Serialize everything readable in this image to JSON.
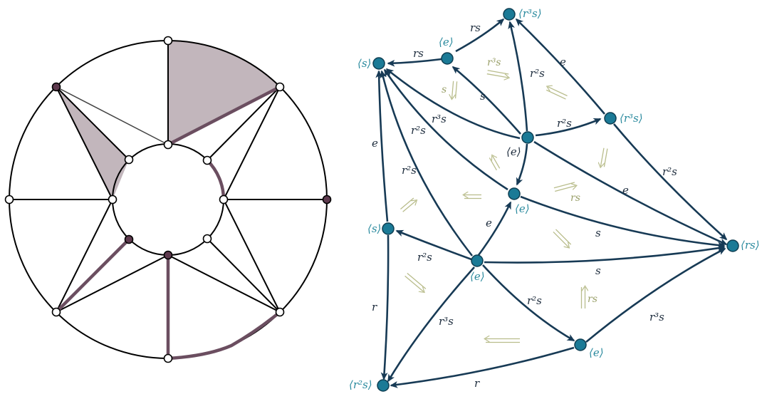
{
  "left_figure": {
    "title": "",
    "colors": {
      "shade": "#c2b6bc",
      "highlight": "#6b4e60",
      "filled_vertex": "#5e3a4e",
      "line": "#000000"
    }
  },
  "right_figure": {
    "colors": {
      "node": "#1b7a96",
      "edge": "#173a55",
      "node_label": "#2a8a9e",
      "double_arrow": "#b9bd8c",
      "double_arrow_label": "#9aa06a"
    },
    "nodes": [
      {
        "id": "n_s_top",
        "label": "⟨s⟩"
      },
      {
        "id": "n_e_top",
        "label": "⟨e⟩"
      },
      {
        "id": "n_r3s_top",
        "label": "⟨r³s⟩"
      },
      {
        "id": "n_r3s_right",
        "label": "⟨r³s⟩"
      },
      {
        "id": "n_e_center",
        "label": "⟨e⟩"
      },
      {
        "id": "n_e_mid",
        "label": "⟨e⟩"
      },
      {
        "id": "n_s_left",
        "label": "⟨s⟩"
      },
      {
        "id": "n_e_low",
        "label": "⟨e⟩"
      },
      {
        "id": "n_rs",
        "label": "⟨rs⟩"
      },
      {
        "id": "n_e_bottom",
        "label": "⟨e⟩"
      },
      {
        "id": "n_r2s",
        "label": "⟨r²s⟩"
      }
    ],
    "edge_labels": {
      "e_top_to_r3s": "rs",
      "e_top_to_s": "rs",
      "r3s_right_to_r3s_top": "e",
      "center_to_r3s_top": "r²s",
      "center_to_e_top": "s",
      "center_to_s": "r³s",
      "center_to_r3s_right": "r²s",
      "r3s_right_to_rs": "r²s",
      "center_to_rs": "e",
      "mid_to_s": "r²s",
      "mid_to_rs": "s",
      "low_to_rs": "s",
      "low_to_mid": "e",
      "s_left_to_s": "e",
      "low_to_s": "r²s",
      "low_to_s_left": "r²s",
      "s_left_to_r2s": "r",
      "low_to_r2s": "r³s",
      "low_to_e_bottom": "r²s",
      "e_bottom_to_rs": "r³s",
      "e_bottom_to_r2s": "r"
    },
    "two_cell_labels": {
      "a1": "r³s",
      "a2": "s",
      "a3": "rs",
      "a4": "rs"
    }
  }
}
